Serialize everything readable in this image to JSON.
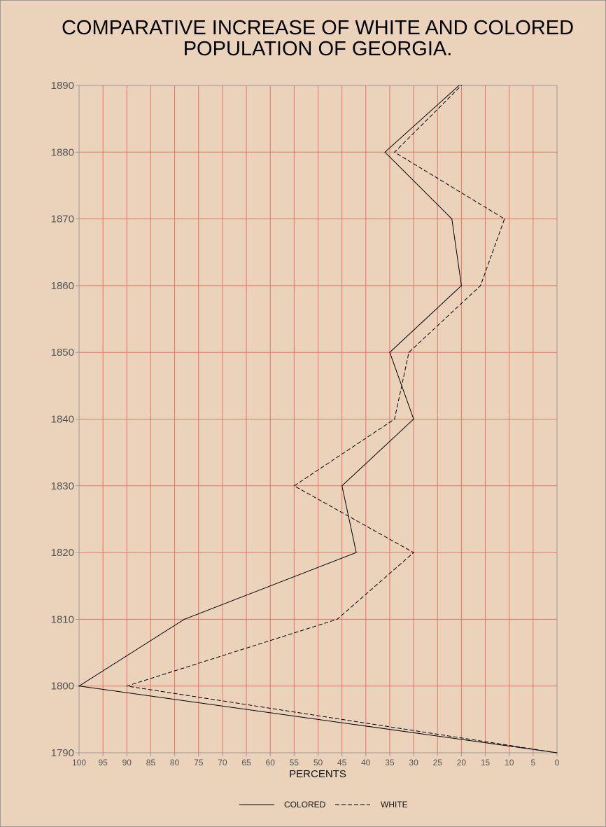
{
  "chart_data": {
    "type": "line",
    "title": [
      "COMPARATIVE INCREASE OF WHITE AND COLORED",
      "POPULATION OF GEORGIA."
    ],
    "xlabel": "PERCENTS",
    "xlim": [
      100,
      0
    ],
    "ylim": [
      1790,
      1890
    ],
    "x_ticks": [
      100,
      95,
      90,
      85,
      80,
      75,
      70,
      65,
      60,
      55,
      50,
      45,
      40,
      35,
      30,
      25,
      20,
      15,
      10,
      5,
      0
    ],
    "y_ticks": [
      1890,
      1880,
      1870,
      1860,
      1850,
      1840,
      1830,
      1820,
      1810,
      1800,
      1790
    ],
    "grid": true,
    "legend_position": "bottom",
    "series": [
      {
        "name": "COLORED",
        "style": "solid",
        "points": [
          {
            "year": 1790,
            "percent": 0
          },
          {
            "year": 1800,
            "percent": 100
          },
          {
            "year": 1810,
            "percent": 78
          },
          {
            "year": 1820,
            "percent": 42
          },
          {
            "year": 1830,
            "percent": 45
          },
          {
            "year": 1840,
            "percent": 30
          },
          {
            "year": 1850,
            "percent": 35
          },
          {
            "year": 1860,
            "percent": 20
          },
          {
            "year": 1870,
            "percent": 22
          },
          {
            "year": 1880,
            "percent": 36
          },
          {
            "year": 1890,
            "percent": 20.5
          }
        ]
      },
      {
        "name": "WHITE",
        "style": "dashed",
        "points": [
          {
            "year": 1790,
            "percent": 0
          },
          {
            "year": 1800,
            "percent": 90
          },
          {
            "year": 1810,
            "percent": 46
          },
          {
            "year": 1820,
            "percent": 30
          },
          {
            "year": 1830,
            "percent": 55
          },
          {
            "year": 1840,
            "percent": 34
          },
          {
            "year": 1850,
            "percent": 31
          },
          {
            "year": 1860,
            "percent": 16
          },
          {
            "year": 1870,
            "percent": 11
          },
          {
            "year": 1880,
            "percent": 34
          },
          {
            "year": 1890,
            "percent": 20
          }
        ]
      }
    ]
  },
  "colors": {
    "background": "#ead3ba",
    "grid": "#e2746a",
    "axis": "#999999",
    "line": "#000000"
  }
}
